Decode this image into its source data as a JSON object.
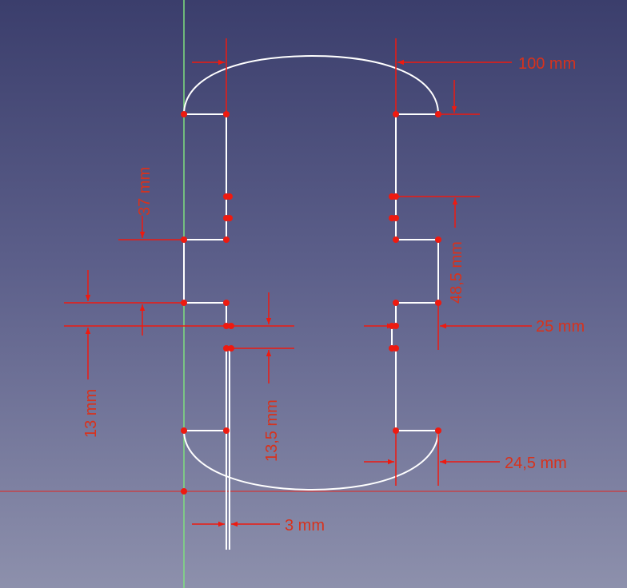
{
  "colors": {
    "background_top": "#3b3e6c",
    "background_bottom": "#8d90ac",
    "geometry": "#ffffff",
    "constraint": "#ee1a10",
    "dimension_text": "#d8321c",
    "y_axis": "#7fe07f",
    "x_axis": "#d0383a"
  },
  "dimensions": {
    "width_100": "100 mm",
    "h_37": "37 mm",
    "h_48_5": "48,5 mm",
    "w_25": "25 mm",
    "h_13": "13 mm",
    "h_13_5": "13,5 mm",
    "w_24_5": "24,5 mm",
    "w_3": "3 mm"
  }
}
